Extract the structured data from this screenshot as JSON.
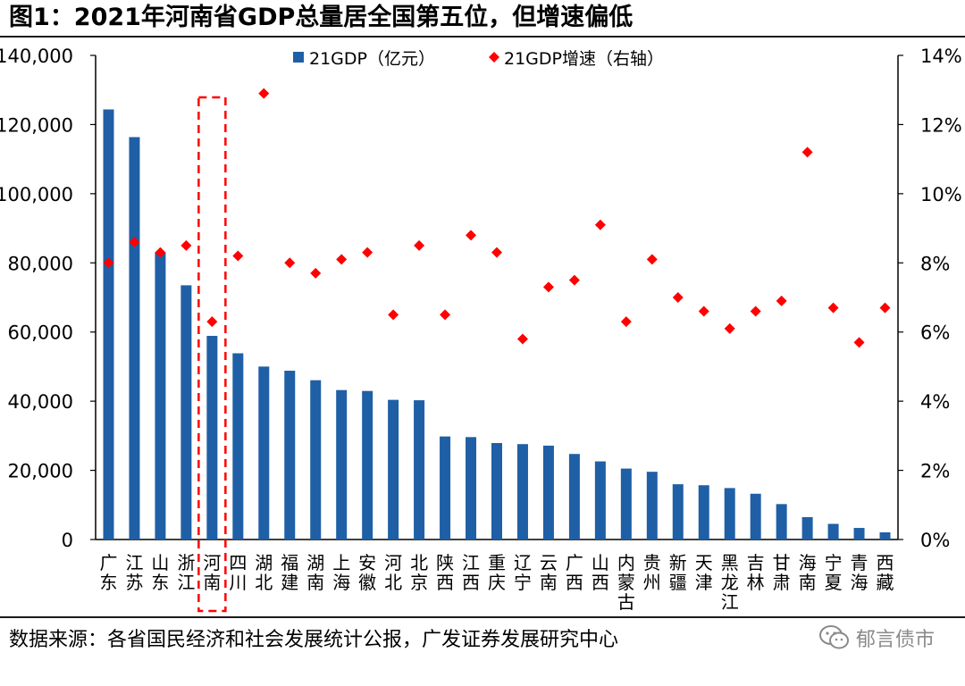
{
  "header": {
    "title": "图1：2021年河南省GDP总量居全国第五位，但增速偏低"
  },
  "footer": {
    "source": "数据来源：各省国民经济和社会发展统计公报，广发证券发展研究中心",
    "watermark": "郁言债市",
    "watermark_icon": "wechat-icon"
  },
  "chart_data": {
    "type": "bar",
    "title": "",
    "xlabel": "",
    "ylabel": "",
    "categories": [
      "广东",
      "江苏",
      "山东",
      "浙江",
      "河南",
      "四川",
      "湖北",
      "福建",
      "湖南",
      "上海",
      "安徽",
      "河北",
      "北京",
      "陕西",
      "江西",
      "重庆",
      "辽宁",
      "云南",
      "广西",
      "山西",
      "内蒙古",
      "贵州",
      "新疆",
      "天津",
      "黑龙江",
      "吉林",
      "甘肃",
      "海南",
      "宁夏",
      "青海",
      "西藏"
    ],
    "series": [
      {
        "name": "21GDP（亿元）",
        "type": "bar",
        "axis": "left",
        "color": "#1f5fa6",
        "values": [
          124370,
          116364,
          83096,
          73516,
          58887,
          53851,
          50013,
          48810,
          46063,
          43215,
          42959,
          40391,
          40270,
          29801,
          29620,
          27894,
          27584,
          27147,
          24741,
          22590,
          20514,
          19586,
          15984,
          15695,
          14879,
          13236,
          10243,
          6475,
          4522,
          3347,
          2080
        ]
      },
      {
        "name": "21GDP增速（右轴）",
        "type": "scatter",
        "axis": "right",
        "marker": "diamond",
        "color": "#ff0000",
        "values": [
          8.0,
          8.6,
          8.3,
          8.5,
          6.3,
          8.2,
          12.9,
          8.0,
          7.7,
          8.1,
          8.3,
          6.5,
          8.5,
          6.5,
          8.8,
          8.3,
          5.8,
          7.3,
          7.5,
          9.1,
          6.3,
          8.1,
          7.0,
          6.6,
          6.1,
          6.6,
          6.9,
          11.2,
          6.7,
          5.7,
          6.7
        ]
      }
    ],
    "y_left": {
      "ylim": [
        0,
        140000
      ],
      "ticks": [
        0,
        20000,
        40000,
        60000,
        80000,
        100000,
        120000,
        140000
      ],
      "tick_labels": [
        "0",
        "20,000",
        "40,000",
        "60,000",
        "80,000",
        "100,000",
        "120,000",
        "140,000"
      ]
    },
    "y_right": {
      "ylim": [
        0,
        14
      ],
      "ticks": [
        0,
        2,
        4,
        6,
        8,
        10,
        12,
        14
      ],
      "tick_labels": [
        "0%",
        "2%",
        "4%",
        "6%",
        "8%",
        "10%",
        "12%",
        "14%"
      ]
    },
    "legend": {
      "placement": "top-center",
      "entries": [
        "21GDP（亿元）",
        "21GDP增速（右轴）"
      ]
    },
    "grid": false,
    "highlight": {
      "category": "河南",
      "style": "red-dashed-box"
    }
  }
}
